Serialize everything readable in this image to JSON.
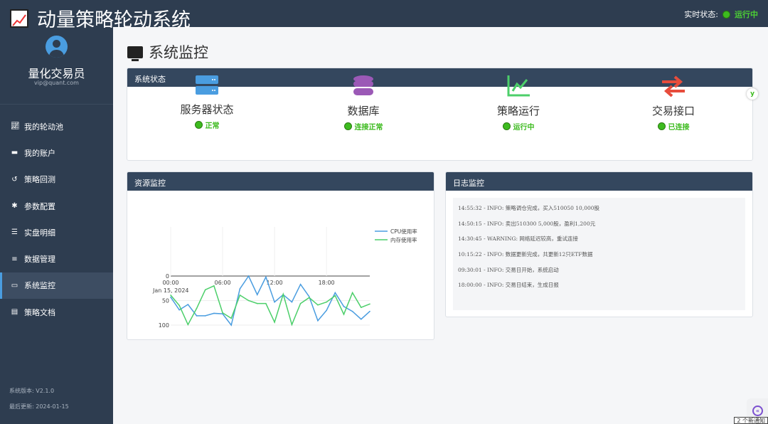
{
  "header": {
    "title": "动量策略轮动系统",
    "status_label": "实时状态:",
    "status_value": "运行中"
  },
  "user": {
    "name": "量化交易员",
    "email": "vip@quant.com"
  },
  "sidebar": {
    "items": [
      {
        "label": "我的轮动池",
        "icon": "chart-line-icon"
      },
      {
        "label": "我的账户",
        "icon": "wallet-icon"
      },
      {
        "label": "策略回测",
        "icon": "history-icon"
      },
      {
        "label": "参数配置",
        "icon": "gear-icon"
      },
      {
        "label": "实盘明细",
        "icon": "list-icon"
      },
      {
        "label": "数据管理",
        "icon": "database-icon"
      },
      {
        "label": "系统监控",
        "icon": "monitor-icon",
        "active": true
      },
      {
        "label": "策略文档",
        "icon": "book-icon"
      }
    ],
    "version": "系统版本: V2.1.0",
    "updated": "最后更新: 2024-01-15"
  },
  "page": {
    "title": "系统监控"
  },
  "system_status": {
    "title": "系统状态",
    "cards": [
      {
        "name": "服务器状态",
        "status": "正常",
        "icon": "server-icon",
        "color": "#4a9de0"
      },
      {
        "name": "数据库",
        "status": "连接正常",
        "icon": "database-icon",
        "color": "#9b59b6"
      },
      {
        "name": "策略运行",
        "status": "运行中",
        "icon": "chart-line-icon",
        "color": "#4ccf6a"
      },
      {
        "name": "交易接口",
        "status": "已连接",
        "icon": "exchange-icon",
        "color": "#e74c3c"
      }
    ]
  },
  "resource": {
    "title": "资源监控"
  },
  "logs": {
    "title": "日志监控",
    "lines": [
      "14:55:32 - INFO: 策略调仓完成，买入510050 10,000股",
      "14:50:15 - INFO: 卖出510300 5,000股，盈利1,200元",
      "14:30:45 - WARNING: 网络延迟较高，重试连接",
      "10:15:22 - INFO: 数据更新完成，共更新12只ETF数据",
      "09:30:01 - INFO: 交易日开始，系统启动",
      "18:00:00 - INFO: 交易日结束，生成日报"
    ]
  },
  "notice": "2 个新通知",
  "chart_data": {
    "type": "line",
    "x": [
      "00:00",
      "01:00",
      "02:00",
      "03:00",
      "04:00",
      "05:00",
      "06:00",
      "07:00",
      "08:00",
      "09:00",
      "10:00",
      "11:00",
      "12:00",
      "13:00",
      "14:00",
      "15:00",
      "16:00",
      "17:00",
      "18:00",
      "19:00",
      "20:00",
      "21:00",
      "22:00",
      "23:00"
    ],
    "x_ticks": [
      "00:00",
      "06:00",
      "12:00",
      "18:00"
    ],
    "x_sublabel": "Jan 15, 2024",
    "y_ticks": [
      0,
      50,
      100
    ],
    "ylim": [
      0,
      100
    ],
    "legend": "right",
    "series": [
      {
        "name": "CPU使用率",
        "color": "#4a9de0",
        "values": [
          43,
          69,
          58,
          81,
          81,
          76,
          77,
          100,
          26,
          0,
          38,
          2,
          53,
          38,
          53,
          17,
          42,
          91,
          70,
          34,
          62,
          72,
          88,
          72
        ]
      },
      {
        "name": "内存使用率",
        "color": "#4ccf6a",
        "values": [
          39,
          60,
          99,
          66,
          28,
          20,
          75,
          86,
          39,
          50,
          56,
          56,
          94,
          37,
          99,
          56,
          44,
          59,
          53,
          40,
          78,
          34,
          64,
          57
        ]
      }
    ]
  }
}
